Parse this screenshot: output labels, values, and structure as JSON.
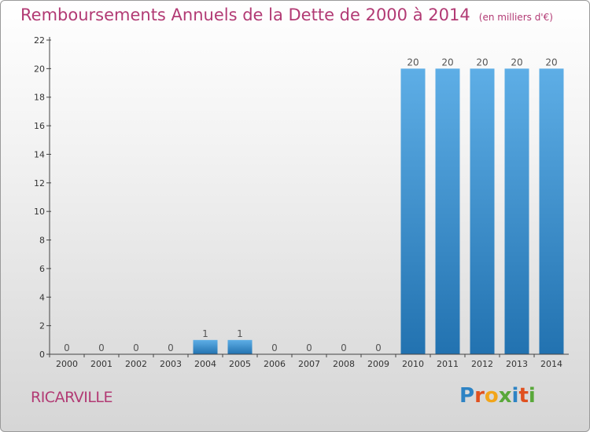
{
  "header": {
    "title": "Remboursements Annuels de la Dette de 2000 à 2014",
    "unit": "(en milliers d'€)"
  },
  "footer": {
    "commune": "RICARVILLE",
    "logo_letters": [
      "P",
      "r",
      "o",
      "x",
      "i",
      "t",
      "i"
    ]
  },
  "chart_data": {
    "type": "bar",
    "title": "Remboursements Annuels de la Dette de 2000 à 2014",
    "subtitle": "(en milliers d'€)",
    "xlabel": "",
    "ylabel": "",
    "categories": [
      "2000",
      "2001",
      "2002",
      "2003",
      "2004",
      "2005",
      "2006",
      "2007",
      "2008",
      "2009",
      "2010",
      "2011",
      "2012",
      "2013",
      "2014"
    ],
    "values": [
      0,
      0,
      0,
      0,
      1,
      1,
      0,
      0,
      0,
      0,
      20,
      20,
      20,
      20,
      20
    ],
    "data_labels": [
      "0",
      "0",
      "0",
      "0",
      "1",
      "1",
      "0",
      "0",
      "0",
      "0",
      "20",
      "20",
      "20",
      "20",
      "20"
    ],
    "ylim": [
      0,
      22
    ],
    "yticks": [
      0,
      2,
      4,
      6,
      8,
      10,
      12,
      14,
      16,
      18,
      20,
      22
    ],
    "grid": false,
    "legend": "none",
    "bar_color": "#3b96d8",
    "title_color": "#b23a74"
  }
}
